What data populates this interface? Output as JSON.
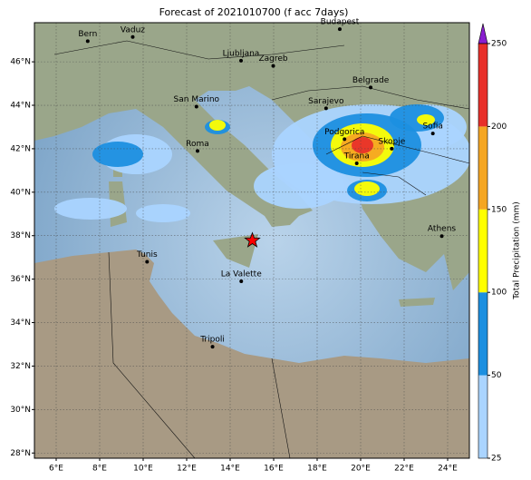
{
  "map": {
    "title": "Forecast of 2021010700 (f acc 7days)",
    "xlim": [
      5,
      25
    ],
    "ylim": [
      27.76,
      47.8
    ],
    "xticks": [
      {
        "value": 6,
        "label": "6°E"
      },
      {
        "value": 8,
        "label": "8°E"
      },
      {
        "value": 10,
        "label": "10°E"
      },
      {
        "value": 12,
        "label": "12°E"
      },
      {
        "value": 14,
        "label": "14°E"
      },
      {
        "value": 16,
        "label": "16°E"
      },
      {
        "value": 18,
        "label": "18°E"
      },
      {
        "value": 20,
        "label": "20°E"
      },
      {
        "value": 22,
        "label": "22°E"
      },
      {
        "value": 24,
        "label": "24°E"
      }
    ],
    "yticks": [
      {
        "value": 28,
        "label": "28°N"
      },
      {
        "value": 30,
        "label": "30°N"
      },
      {
        "value": 32,
        "label": "32°N"
      },
      {
        "value": 34,
        "label": "34°N"
      },
      {
        "value": 36,
        "label": "36°N"
      },
      {
        "value": 38,
        "label": "38°N"
      },
      {
        "value": 40,
        "label": "40°N"
      },
      {
        "value": 42,
        "label": "42°N"
      },
      {
        "value": 44,
        "label": "44°N"
      },
      {
        "value": 46,
        "label": "46°N"
      }
    ],
    "grid": true,
    "cities": [
      {
        "name": "Bern",
        "lon": 7.45,
        "lat": 46.95
      },
      {
        "name": "Vaduz",
        "lon": 9.52,
        "lat": 47.14
      },
      {
        "name": "Budapest",
        "lon": 19.04,
        "lat": 47.5
      },
      {
        "name": "Ljubljana",
        "lon": 14.5,
        "lat": 46.05
      },
      {
        "name": "Zagreb",
        "lon": 15.98,
        "lat": 45.81
      },
      {
        "name": "Belgrade",
        "lon": 20.46,
        "lat": 44.82
      },
      {
        "name": "San Marino",
        "lon": 12.45,
        "lat": 43.94
      },
      {
        "name": "Sarajevo",
        "lon": 18.41,
        "lat": 43.86
      },
      {
        "name": "Podgorica",
        "lon": 19.26,
        "lat": 42.44
      },
      {
        "name": "Sofia",
        "lon": 23.32,
        "lat": 42.7
      },
      {
        "name": "Skopje",
        "lon": 21.43,
        "lat": 42.0
      },
      {
        "name": "Roma",
        "lon": 12.5,
        "lat": 41.9
      },
      {
        "name": "Tirana",
        "lon": 19.82,
        "lat": 41.33
      },
      {
        "name": "Athens",
        "lon": 23.73,
        "lat": 37.98
      },
      {
        "name": "Tunis",
        "lon": 10.18,
        "lat": 36.8
      },
      {
        "name": "La Valette",
        "lon": 14.51,
        "lat": 35.9
      },
      {
        "name": "Tripoli",
        "lon": 13.19,
        "lat": 32.89
      }
    ],
    "star": {
      "lon": 15.02,
      "lat": 37.78,
      "color": "#ff0000"
    },
    "colorbar": {
      "title": "Total Precipitation (mm)",
      "levels": [
        25,
        50,
        100,
        150,
        200,
        250
      ],
      "colors": [
        "#aad4ff",
        "#1c8fe0",
        "#ffff00",
        "#f5a623",
        "#e8302a"
      ],
      "extend_color": "#8a1fd0"
    }
  }
}
